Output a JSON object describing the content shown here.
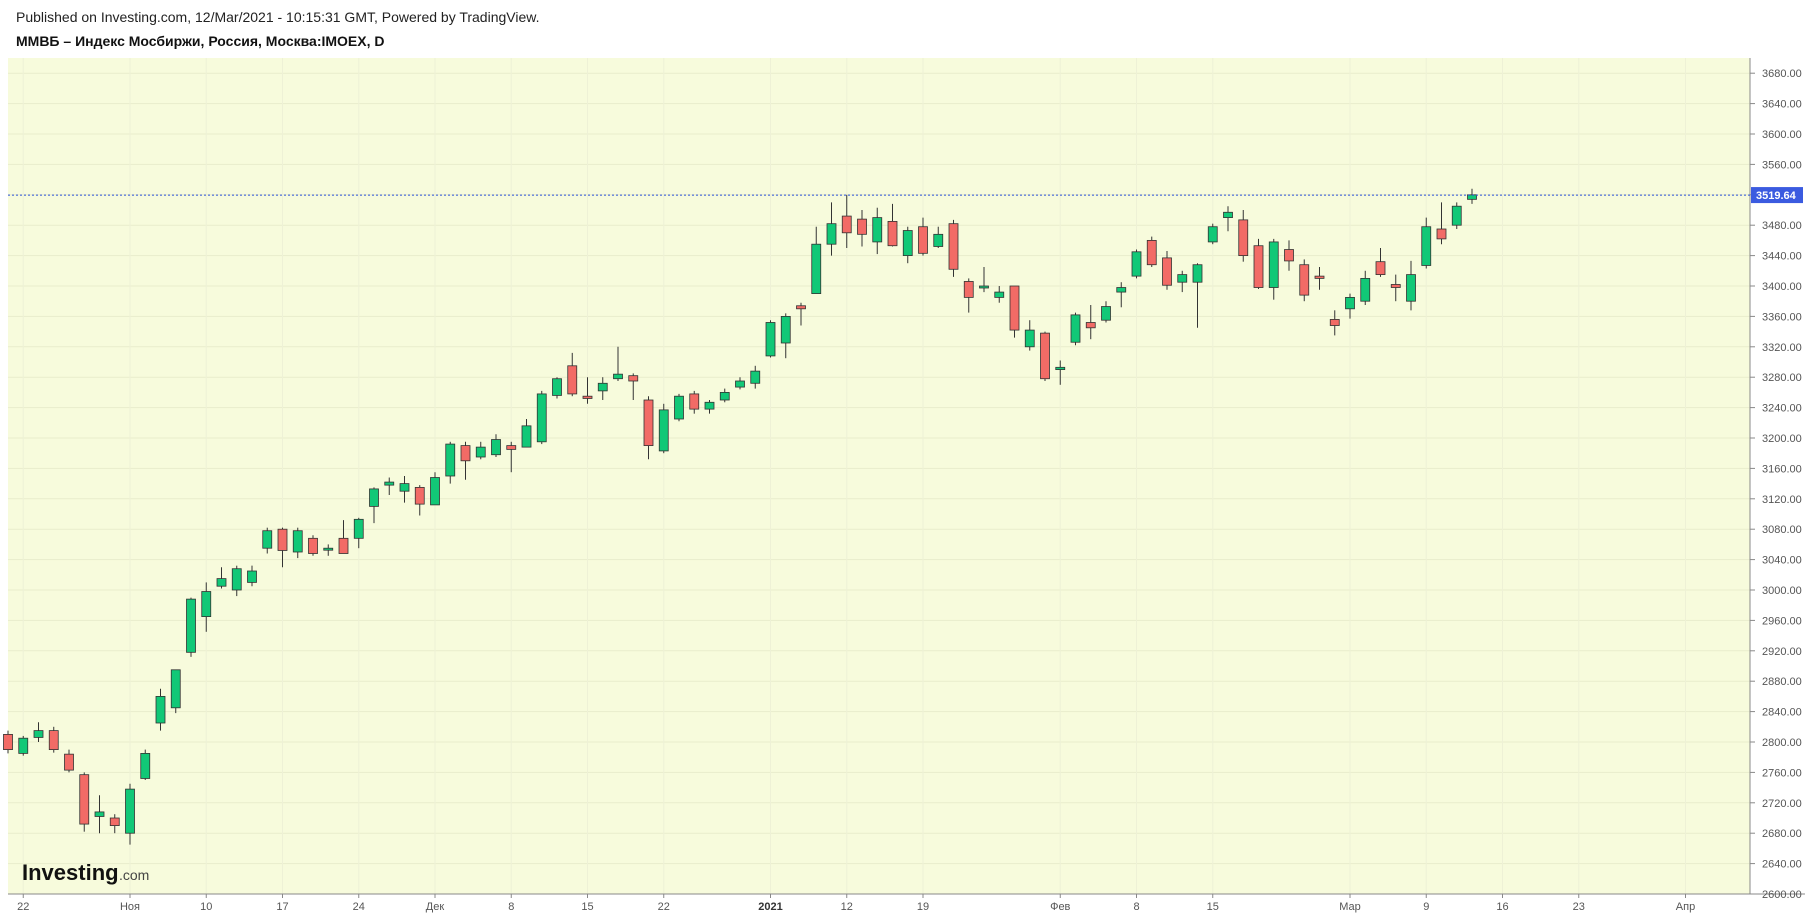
{
  "header": {
    "published": "Published on Investing.com, 12/Mar/2021 - 10:15:31 GMT, Powered by TradingView.",
    "symbol": "ММВБ – Индекс Мосбиржи, Россия, Москва:IMOEX, D"
  },
  "logo": {
    "main": "Investing",
    "suffix": ".com"
  },
  "colors": {
    "plot_bg": "#f7fbdc",
    "up": "#11c877",
    "down": "#f26b66",
    "wick": "#333333",
    "current_line": "#2a4fd8",
    "current_label_bg": "#3b5be0"
  },
  "chart_data": {
    "type": "candlestick",
    "interval": "D",
    "ylim": [
      2600,
      3700
    ],
    "yticks": [
      2600,
      2640,
      2680,
      2720,
      2760,
      2800,
      2840,
      2880,
      2920,
      2960,
      3000,
      3040,
      3080,
      3120,
      3160,
      3200,
      3240,
      3280,
      3320,
      3360,
      3400,
      3440,
      3480,
      3520,
      3560,
      3600,
      3640,
      3680
    ],
    "ytick_labels": [
      "2600.00",
      "2640.00",
      "2680.00",
      "2720.00",
      "2760.00",
      "2800.00",
      "2840.00",
      "2880.00",
      "2920.00",
      "2960.00",
      "3000.00",
      "3040.00",
      "3080.00",
      "3120.00",
      "3160.00",
      "3200.00",
      "3240.00",
      "3280.00",
      "3320.00",
      "3360.00",
      "3400.00",
      "3440.00",
      "3480.00",
      "3520.00",
      "3560.00",
      "3600.00",
      "3640.00",
      "3680.00"
    ],
    "current_value": 3519.64,
    "current_label": "3519.64",
    "xticks": [
      {
        "label": "22",
        "index": 1,
        "bold": false
      },
      {
        "label": "Ноя",
        "index": 8,
        "bold": false
      },
      {
        "label": "10",
        "index": 13,
        "bold": false
      },
      {
        "label": "17",
        "index": 18,
        "bold": false
      },
      {
        "label": "24",
        "index": 23,
        "bold": false
      },
      {
        "label": "Дек",
        "index": 28,
        "bold": false
      },
      {
        "label": "8",
        "index": 33,
        "bold": false
      },
      {
        "label": "15",
        "index": 38,
        "bold": false
      },
      {
        "label": "22",
        "index": 43,
        "bold": false
      },
      {
        "label": "2021",
        "index": 50,
        "bold": true
      },
      {
        "label": "12",
        "index": 55,
        "bold": false
      },
      {
        "label": "19",
        "index": 60,
        "bold": false
      },
      {
        "label": "Фев",
        "index": 69,
        "bold": false
      },
      {
        "label": "8",
        "index": 74,
        "bold": false
      },
      {
        "label": "15",
        "index": 79,
        "bold": false
      },
      {
        "label": "Мар",
        "index": 88,
        "bold": false
      },
      {
        "label": "9",
        "index": 93,
        "bold": false
      },
      {
        "label": "16",
        "index": 98,
        "bold": false
      },
      {
        "label": "23",
        "index": 103,
        "bold": false
      },
      {
        "label": "Апр",
        "index": 110,
        "bold": false
      }
    ],
    "candles": [
      {
        "o": 2810,
        "h": 2815,
        "l": 2785,
        "c": 2790
      },
      {
        "o": 2785,
        "h": 2808,
        "l": 2782,
        "c": 2805
      },
      {
        "o": 2806,
        "h": 2826,
        "l": 2800,
        "c": 2815
      },
      {
        "o": 2815,
        "h": 2820,
        "l": 2786,
        "c": 2790
      },
      {
        "o": 2784,
        "h": 2790,
        "l": 2760,
        "c": 2763
      },
      {
        "o": 2757,
        "h": 2760,
        "l": 2682,
        "c": 2692
      },
      {
        "o": 2702,
        "h": 2730,
        "l": 2680,
        "c": 2708
      },
      {
        "o": 2700,
        "h": 2705,
        "l": 2680,
        "c": 2690
      },
      {
        "o": 2680,
        "h": 2745,
        "l": 2665,
        "c": 2738
      },
      {
        "o": 2752,
        "h": 2790,
        "l": 2750,
        "c": 2785
      },
      {
        "o": 2825,
        "h": 2870,
        "l": 2815,
        "c": 2860
      },
      {
        "o": 2845,
        "h": 2895,
        "l": 2838,
        "c": 2895
      },
      {
        "o": 2918,
        "h": 2990,
        "l": 2912,
        "c": 2988
      },
      {
        "o": 2965,
        "h": 3010,
        "l": 2945,
        "c": 2998
      },
      {
        "o": 3005,
        "h": 3030,
        "l": 3002,
        "c": 3015
      },
      {
        "o": 3000,
        "h": 3032,
        "l": 2992,
        "c": 3028
      },
      {
        "o": 3010,
        "h": 3032,
        "l": 3005,
        "c": 3025
      },
      {
        "o": 3055,
        "h": 3082,
        "l": 3048,
        "c": 3078
      },
      {
        "o": 3080,
        "h": 3082,
        "l": 3030,
        "c": 3052
      },
      {
        "o": 3050,
        "h": 3082,
        "l": 3042,
        "c": 3078
      },
      {
        "o": 3068,
        "h": 3072,
        "l": 3045,
        "c": 3048
      },
      {
        "o": 3055,
        "h": 3060,
        "l": 3045,
        "c": 3055
      },
      {
        "o": 3068,
        "h": 3092,
        "l": 3048,
        "c": 3048
      },
      {
        "o": 3068,
        "h": 3095,
        "l": 3055,
        "c": 3093
      },
      {
        "o": 3110,
        "h": 3135,
        "l": 3088,
        "c": 3133
      },
      {
        "o": 3138,
        "h": 3148,
        "l": 3125,
        "c": 3142
      },
      {
        "o": 3130,
        "h": 3150,
        "l": 3115,
        "c": 3140
      },
      {
        "o": 3135,
        "h": 3138,
        "l": 3098,
        "c": 3113
      },
      {
        "o": 3112,
        "h": 3155,
        "l": 3112,
        "c": 3148
      },
      {
        "o": 3150,
        "h": 3195,
        "l": 3140,
        "c": 3192
      },
      {
        "o": 3190,
        "h": 3195,
        "l": 3145,
        "c": 3170
      },
      {
        "o": 3175,
        "h": 3195,
        "l": 3172,
        "c": 3188
      },
      {
        "o": 3178,
        "h": 3205,
        "l": 3175,
        "c": 3198
      },
      {
        "o": 3190,
        "h": 3195,
        "l": 3155,
        "c": 3185
      },
      {
        "o": 3188,
        "h": 3225,
        "l": 3188,
        "c": 3216
      },
      {
        "o": 3195,
        "h": 3262,
        "l": 3192,
        "c": 3258
      },
      {
        "o": 3256,
        "h": 3280,
        "l": 3252,
        "c": 3278
      },
      {
        "o": 3295,
        "h": 3312,
        "l": 3255,
        "c": 3258
      },
      {
        "o": 3255,
        "h": 3280,
        "l": 3245,
        "c": 3252
      },
      {
        "o": 3262,
        "h": 3280,
        "l": 3250,
        "c": 3272
      },
      {
        "o": 3278,
        "h": 3320,
        "l": 3275,
        "c": 3284
      },
      {
        "o": 3282,
        "h": 3285,
        "l": 3250,
        "c": 3275
      },
      {
        "o": 3250,
        "h": 3255,
        "l": 3172,
        "c": 3190
      },
      {
        "o": 3183,
        "h": 3245,
        "l": 3180,
        "c": 3237
      },
      {
        "o": 3225,
        "h": 3258,
        "l": 3222,
        "c": 3255
      },
      {
        "o": 3258,
        "h": 3262,
        "l": 3232,
        "c": 3238
      },
      {
        "o": 3238,
        "h": 3250,
        "l": 3232,
        "c": 3247
      },
      {
        "o": 3250,
        "h": 3265,
        "l": 3247,
        "c": 3260
      },
      {
        "o": 3267,
        "h": 3280,
        "l": 3264,
        "c": 3275
      },
      {
        "o": 3272,
        "h": 3295,
        "l": 3265,
        "c": 3288
      },
      {
        "o": 3308,
        "h": 3355,
        "l": 3306,
        "c": 3352
      },
      {
        "o": 3325,
        "h": 3364,
        "l": 3305,
        "c": 3360
      },
      {
        "o": 3374,
        "h": 3378,
        "l": 3348,
        "c": 3370
      },
      {
        "o": 3390,
        "h": 3478,
        "l": 3390,
        "c": 3455
      },
      {
        "o": 3455,
        "h": 3510,
        "l": 3440,
        "c": 3482
      },
      {
        "o": 3492,
        "h": 3520,
        "l": 3450,
        "c": 3470
      },
      {
        "o": 3488,
        "h": 3500,
        "l": 3452,
        "c": 3468
      },
      {
        "o": 3458,
        "h": 3503,
        "l": 3442,
        "c": 3490
      },
      {
        "o": 3485,
        "h": 3508,
        "l": 3452,
        "c": 3453
      },
      {
        "o": 3440,
        "h": 3478,
        "l": 3430,
        "c": 3473
      },
      {
        "o": 3478,
        "h": 3490,
        "l": 3440,
        "c": 3443
      },
      {
        "o": 3452,
        "h": 3478,
        "l": 3450,
        "c": 3468
      },
      {
        "o": 3482,
        "h": 3487,
        "l": 3412,
        "c": 3422
      },
      {
        "o": 3406,
        "h": 3410,
        "l": 3365,
        "c": 3385
      },
      {
        "o": 3399,
        "h": 3425,
        "l": 3392,
        "c": 3400
      },
      {
        "o": 3385,
        "h": 3400,
        "l": 3378,
        "c": 3392
      },
      {
        "o": 3400,
        "h": 3400,
        "l": 3332,
        "c": 3342
      },
      {
        "o": 3320,
        "h": 3355,
        "l": 3315,
        "c": 3342
      },
      {
        "o": 3338,
        "h": 3340,
        "l": 3275,
        "c": 3278
      },
      {
        "o": 3290,
        "h": 3302,
        "l": 3270,
        "c": 3293
      },
      {
        "o": 3326,
        "h": 3365,
        "l": 3322,
        "c": 3362
      },
      {
        "o": 3352,
        "h": 3375,
        "l": 3330,
        "c": 3345
      },
      {
        "o": 3355,
        "h": 3380,
        "l": 3352,
        "c": 3373
      },
      {
        "o": 3392,
        "h": 3405,
        "l": 3372,
        "c": 3398
      },
      {
        "o": 3413,
        "h": 3448,
        "l": 3410,
        "c": 3445
      },
      {
        "o": 3460,
        "h": 3465,
        "l": 3425,
        "c": 3428
      },
      {
        "o": 3437,
        "h": 3446,
        "l": 3395,
        "c": 3401
      },
      {
        "o": 3405,
        "h": 3420,
        "l": 3392,
        "c": 3415
      },
      {
        "o": 3405,
        "h": 3430,
        "l": 3345,
        "c": 3428
      },
      {
        "o": 3458,
        "h": 3482,
        "l": 3455,
        "c": 3478
      },
      {
        "o": 3490,
        "h": 3505,
        "l": 3472,
        "c": 3497
      },
      {
        "o": 3487,
        "h": 3500,
        "l": 3432,
        "c": 3440
      },
      {
        "o": 3453,
        "h": 3462,
        "l": 3396,
        "c": 3398
      },
      {
        "o": 3398,
        "h": 3462,
        "l": 3382,
        "c": 3458
      },
      {
        "o": 3448,
        "h": 3460,
        "l": 3420,
        "c": 3433
      },
      {
        "o": 3428,
        "h": 3435,
        "l": 3380,
        "c": 3388
      },
      {
        "o": 3413,
        "h": 3425,
        "l": 3395,
        "c": 3410
      },
      {
        "o": 3356,
        "h": 3368,
        "l": 3335,
        "c": 3348
      },
      {
        "o": 3370,
        "h": 3390,
        "l": 3357,
        "c": 3385
      },
      {
        "o": 3380,
        "h": 3420,
        "l": 3375,
        "c": 3410
      },
      {
        "o": 3432,
        "h": 3450,
        "l": 3412,
        "c": 3415
      },
      {
        "o": 3402,
        "h": 3415,
        "l": 3380,
        "c": 3398
      },
      {
        "o": 3380,
        "h": 3433,
        "l": 3368,
        "c": 3415
      },
      {
        "o": 3427,
        "h": 3490,
        "l": 3423,
        "c": 3478
      },
      {
        "o": 3475,
        "h": 3510,
        "l": 3455,
        "c": 3462
      },
      {
        "o": 3480,
        "h": 3510,
        "l": 3475,
        "c": 3505
      },
      {
        "o": 3514,
        "h": 3528,
        "l": 3508,
        "c": 3520
      }
    ]
  }
}
